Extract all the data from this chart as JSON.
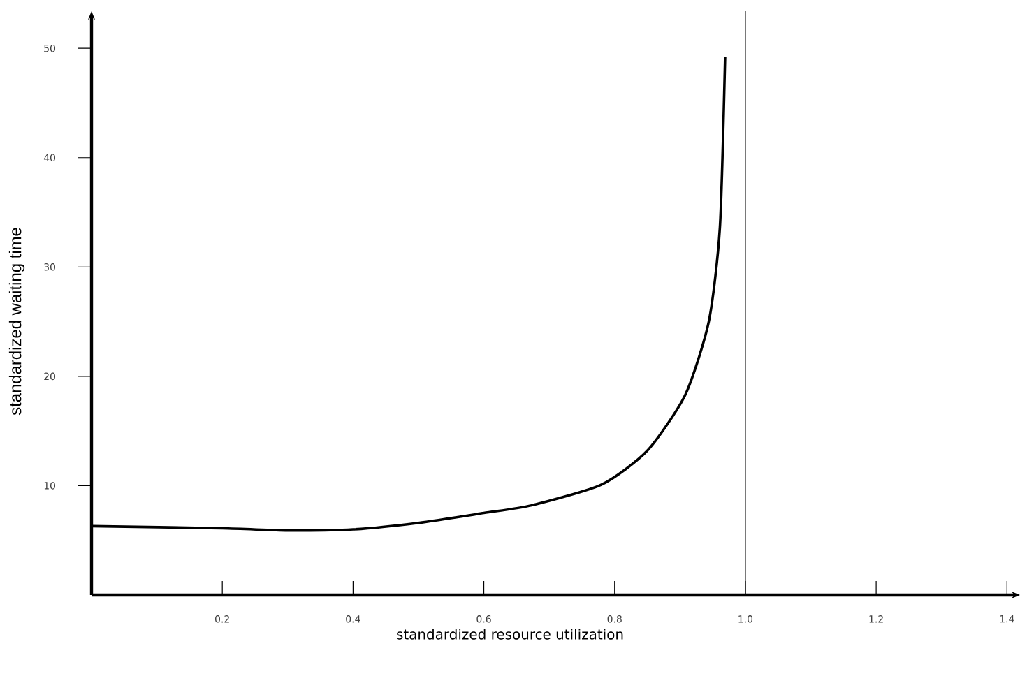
{
  "chart_data": {
    "type": "line",
    "xlabel": "standardized resource utilization",
    "ylabel": "standardized waiting time",
    "x": [
      0,
      0.2,
      0.3,
      0.4,
      0.5,
      0.6,
      0.673,
      0.78,
      0.85,
      0.908,
      0.944,
      0.961,
      0.969
    ],
    "series": [
      {
        "color": "#000000",
        "values": [
          6.3,
          6.1,
          5.9,
          6.0,
          6.6,
          7.5,
          8.2,
          10.1,
          13.2,
          18.3,
          25.0,
          33.6,
          49.2
        ]
      }
    ],
    "xlim": [
      0,
      1.42
    ],
    "ylim": [
      0,
      53.4
    ],
    "xticks": [
      0.2,
      0.4,
      0.6,
      0.8,
      "1.0",
      1.2,
      1.4
    ],
    "yticks": [
      10,
      20,
      30,
      40,
      50
    ],
    "ref_lines": [
      {
        "axis": "x",
        "value": 1.0,
        "color": "#000000"
      }
    ],
    "grid": false
  }
}
